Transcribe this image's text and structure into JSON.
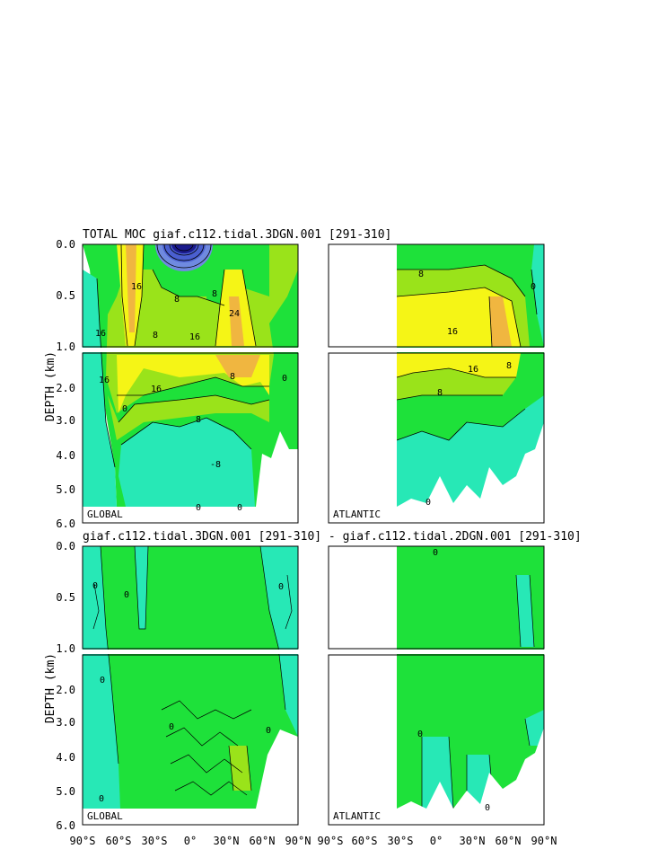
{
  "chart_data": {
    "type": "heatmap",
    "title_top": "TOTAL MOC giaf.c112.tidal.3DGN.001 [291-310]",
    "title_bottom": "giaf.c112.tidal.3DGN.001 [291-310] - giaf.c112.tidal.2DGN.001 [291-310]",
    "ylabel": "DEPTH (km)",
    "y_ticks_upper": [
      "0.0",
      "0.5",
      "1.0"
    ],
    "y_ticks_lower": [
      "2.0",
      "3.0",
      "4.0",
      "5.0",
      "6.0"
    ],
    "x_ticks_global": [
      "90°S",
      "60°S",
      "30°S",
      "0°",
      "30°N",
      "60°N",
      "90°N"
    ],
    "x_ticks_atlantic": [
      "90°S",
      "60°S",
      "30°S",
      "0°",
      "30°N",
      "60°N",
      "90°N"
    ],
    "basin_labels": {
      "global": "GLOBAL",
      "atlantic": "ATLANTIC"
    },
    "contour_labels": {
      "total_global": [
        "16",
        "16",
        "16",
        "24",
        "8",
        "8",
        "8",
        "16",
        "16",
        "8",
        "0",
        "0",
        "8",
        "-8",
        "0",
        "0"
      ],
      "total_atlantic": [
        "8",
        "0",
        "16",
        "16",
        "8",
        "8",
        "0"
      ],
      "diff_global": [
        "0",
        "0",
        "0",
        "0",
        "0",
        "0",
        "0"
      ],
      "diff_atlantic": [
        "0",
        "0",
        "0"
      ]
    },
    "colors": {
      "deep_negative": "#1a1a8c",
      "negative": "#4a5fd0",
      "near_zero": "#27e8b6",
      "low_positive": "#1ee13a",
      "mid_positive": "#9ae31a",
      "high_positive": "#f5f516",
      "max_positive": "#f0b640"
    }
  }
}
